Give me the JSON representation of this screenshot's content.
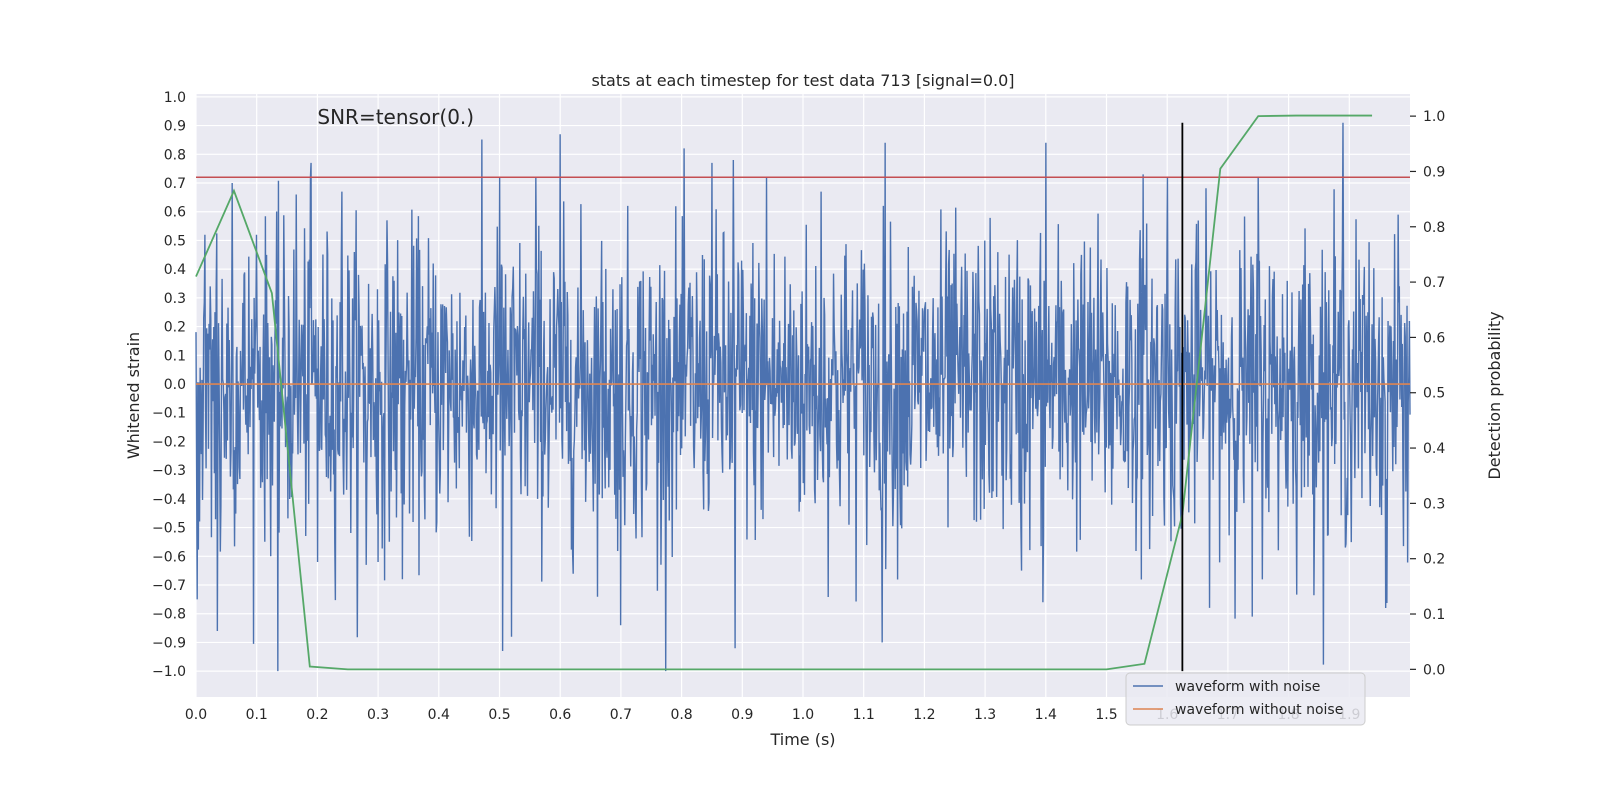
{
  "chart_data": {
    "type": "line",
    "title": "stats at each timestep for test data 713 [signal=0.0]",
    "xlabel": "Time (s)",
    "ylabel": "Whitened strain",
    "y2label": "Detection probability",
    "annotation": "SNR=tensor(0.)",
    "xlim": [
      0.0,
      2.0
    ],
    "ylim": [
      -1.09,
      1.01
    ],
    "y2lim": [
      -0.05,
      1.04
    ],
    "x_ticks": [
      0.0,
      0.1,
      0.2,
      0.3,
      0.4,
      0.5,
      0.6,
      0.7,
      0.8,
      0.9,
      1.0,
      1.1,
      1.2,
      1.3,
      1.4,
      1.5,
      1.6,
      1.7,
      1.8,
      1.9
    ],
    "x_tick_labels": [
      "0.0",
      "0.1",
      "0.2",
      "0.3",
      "0.4",
      "0.5",
      "0.6",
      "0.7",
      "0.8",
      "0.9",
      "1.0",
      "1.1",
      "1.2",
      "1.3",
      "1.4",
      "1.5",
      "1.6",
      "1.7",
      "1.8",
      "1.9"
    ],
    "y_ticks": [
      1.0,
      0.9,
      0.8,
      0.7,
      0.6,
      0.5,
      0.4,
      0.3,
      0.2,
      0.1,
      0.0,
      -0.1,
      -0.2,
      -0.3,
      -0.4,
      -0.5,
      -0.6,
      -0.7,
      -0.8,
      -0.9,
      -1.0
    ],
    "y_tick_labels": [
      "1.0",
      "0.9",
      "0.8",
      "0.7",
      "0.6",
      "0.5",
      "0.4",
      "0.3",
      "0.2",
      "0.1",
      "0.0",
      "−0.1",
      "−0.2",
      "−0.3",
      "−0.4",
      "−0.5",
      "−0.6",
      "−0.7",
      "−0.8",
      "−0.9",
      "−1.0"
    ],
    "y2_ticks": [
      1.0,
      0.9,
      0.8,
      0.7,
      0.6,
      0.5,
      0.4,
      0.3,
      0.2,
      0.1,
      0.0
    ],
    "y2_tick_labels": [
      "1.0",
      "0.9",
      "0.8",
      "0.7",
      "0.6",
      "0.5",
      "0.4",
      "0.3",
      "0.2",
      "0.1",
      "0.0"
    ],
    "threshold_line": {
      "y": 0.72,
      "color": "#c44e52"
    },
    "vertical_marker": {
      "x": 1.625,
      "y_top": 0.91,
      "y_bottom": -1.0,
      "color": "#000000"
    },
    "series": [
      {
        "name": "waveform with noise",
        "color": "#4c72b0",
        "axis": "left",
        "noise": {
          "n": 2048,
          "seed": 713,
          "std": 0.26,
          "clip": [
            -1.0,
            0.95
          ]
        },
        "spikes": [
          [
            0.002,
            -0.75
          ],
          [
            0.015,
            0.52
          ],
          [
            0.035,
            -0.86
          ],
          [
            0.06,
            0.7
          ],
          [
            0.1,
            0.52
          ],
          [
            0.135,
            -1.0
          ],
          [
            0.165,
            0.66
          ],
          [
            0.19,
            0.77
          ],
          [
            0.2,
            -0.62
          ],
          [
            0.24,
            0.67
          ],
          [
            0.28,
            -0.63
          ],
          [
            0.3,
            -0.62
          ],
          [
            0.34,
            -0.68
          ],
          [
            0.5,
            0.72
          ],
          [
            0.505,
            -0.93
          ],
          [
            0.52,
            -0.88
          ],
          [
            0.56,
            0.72
          ],
          [
            0.6,
            0.87
          ],
          [
            0.7,
            -0.84
          ],
          [
            0.76,
            -0.72
          ],
          [
            0.85,
            0.77
          ],
          [
            0.885,
            0.78
          ],
          [
            0.888,
            -0.92
          ],
          [
            0.94,
            0.72
          ],
          [
            1.03,
            0.67
          ],
          [
            1.13,
            -0.9
          ],
          [
            1.135,
            0.84
          ],
          [
            1.36,
            -0.65
          ],
          [
            1.395,
            -0.76
          ],
          [
            1.4,
            0.84
          ],
          [
            1.56,
            0.73
          ],
          [
            1.6,
            0.72
          ],
          [
            1.625,
            -0.1
          ],
          [
            1.74,
            -0.81
          ],
          [
            1.75,
            0.72
          ],
          [
            1.89,
            0.91
          ],
          [
            1.96,
            -0.78
          ],
          [
            1.98,
            0.59
          ]
        ]
      },
      {
        "name": "waveform without noise",
        "color": "#dd8452",
        "axis": "left",
        "x": [
          0.0,
          2.0
        ],
        "y": [
          0.0,
          0.0
        ]
      },
      {
        "name": "",
        "color": "#55a868",
        "axis": "right",
        "x": [
          0.0,
          0.0625,
          0.125,
          0.1875,
          0.25,
          0.3125,
          0.5,
          0.75,
          1.0,
          1.25,
          1.5,
          1.5625,
          1.625,
          1.6875,
          1.75,
          1.8125,
          1.875,
          1.9375
        ],
        "y": [
          0.71,
          0.865,
          0.68,
          0.005,
          0.0,
          0.0,
          0.0,
          0.0,
          0.0,
          0.0,
          0.0,
          0.01,
          0.28,
          0.905,
          1.0,
          1.001,
          1.001,
          1.001
        ]
      }
    ],
    "legend": {
      "placement": "lower right",
      "entries": [
        "waveform with noise",
        "waveform without noise"
      ]
    },
    "grid": true,
    "colors": {
      "plot_bg": "#eaeaf2",
      "grid": "#ffffff",
      "text": "#262626"
    }
  }
}
